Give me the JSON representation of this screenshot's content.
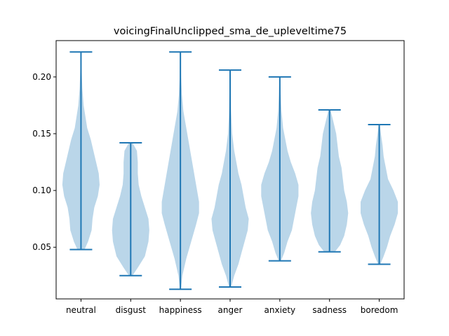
{
  "chart_data": {
    "type": "violin",
    "title": "voicingFinalUnclipped_sma_de_upleveltime75",
    "xlabel": "",
    "ylabel": "",
    "categories": [
      "neutral",
      "disgust",
      "happiness",
      "anger",
      "anxiety",
      "sadness",
      "boredom"
    ],
    "ylim": [
      0.0045,
      0.232
    ],
    "yticks": [
      0.05,
      0.1,
      0.15,
      0.2
    ],
    "ytick_labels": [
      "0.05",
      "0.10",
      "0.15",
      "0.20"
    ],
    "grid": false,
    "legend": "none",
    "colors": {
      "body": "#a9cce3",
      "line": "#1f77b4",
      "axis": "#000000"
    },
    "violins": [
      {
        "category": "neutral",
        "min": 0.048,
        "max": 0.222,
        "profile": [
          [
            0.048,
            0.004
          ],
          [
            0.055,
            0.008
          ],
          [
            0.065,
            0.012
          ],
          [
            0.075,
            0.013
          ],
          [
            0.085,
            0.015
          ],
          [
            0.095,
            0.019
          ],
          [
            0.105,
            0.021
          ],
          [
            0.115,
            0.02
          ],
          [
            0.125,
            0.017
          ],
          [
            0.135,
            0.014
          ],
          [
            0.145,
            0.011
          ],
          [
            0.155,
            0.007
          ],
          [
            0.165,
            0.005
          ],
          [
            0.175,
            0.003
          ],
          [
            0.19,
            0.0015
          ],
          [
            0.205,
            0.0008
          ],
          [
            0.222,
            0.0003
          ]
        ]
      },
      {
        "category": "disgust",
        "min": 0.025,
        "max": 0.142,
        "profile": [
          [
            0.025,
            0.002
          ],
          [
            0.032,
            0.008
          ],
          [
            0.042,
            0.016
          ],
          [
            0.055,
            0.02
          ],
          [
            0.065,
            0.021
          ],
          [
            0.075,
            0.02
          ],
          [
            0.085,
            0.016
          ],
          [
            0.095,
            0.012
          ],
          [
            0.105,
            0.009
          ],
          [
            0.115,
            0.008
          ],
          [
            0.125,
            0.008
          ],
          [
            0.135,
            0.007
          ],
          [
            0.142,
            0.002
          ]
        ]
      },
      {
        "category": "happiness",
        "min": 0.013,
        "max": 0.222,
        "profile": [
          [
            0.013,
            0.0005
          ],
          [
            0.025,
            0.002
          ],
          [
            0.04,
            0.006
          ],
          [
            0.055,
            0.011
          ],
          [
            0.07,
            0.016
          ],
          [
            0.08,
            0.019
          ],
          [
            0.09,
            0.019
          ],
          [
            0.1,
            0.017
          ],
          [
            0.11,
            0.015
          ],
          [
            0.12,
            0.013
          ],
          [
            0.13,
            0.011
          ],
          [
            0.14,
            0.009
          ],
          [
            0.15,
            0.007
          ],
          [
            0.16,
            0.005
          ],
          [
            0.17,
            0.003
          ],
          [
            0.185,
            0.0015
          ],
          [
            0.2,
            0.0007
          ],
          [
            0.222,
            0.0003
          ]
        ]
      },
      {
        "category": "anger",
        "min": 0.015,
        "max": 0.206,
        "profile": [
          [
            0.015,
            0.001
          ],
          [
            0.025,
            0.004
          ],
          [
            0.035,
            0.008
          ],
          [
            0.045,
            0.011
          ],
          [
            0.055,
            0.014
          ],
          [
            0.065,
            0.017
          ],
          [
            0.075,
            0.018
          ],
          [
            0.085,
            0.015
          ],
          [
            0.095,
            0.013
          ],
          [
            0.105,
            0.011
          ],
          [
            0.115,
            0.008
          ],
          [
            0.125,
            0.006
          ],
          [
            0.135,
            0.004
          ],
          [
            0.15,
            0.002
          ],
          [
            0.17,
            0.001
          ],
          [
            0.19,
            0.0006
          ],
          [
            0.206,
            0.0003
          ]
        ]
      },
      {
        "category": "anxiety",
        "min": 0.038,
        "max": 0.2,
        "profile": [
          [
            0.038,
            0.001
          ],
          [
            0.045,
            0.004
          ],
          [
            0.055,
            0.007
          ],
          [
            0.065,
            0.011
          ],
          [
            0.075,
            0.013
          ],
          [
            0.085,
            0.015
          ],
          [
            0.095,
            0.017
          ],
          [
            0.105,
            0.017
          ],
          [
            0.115,
            0.014
          ],
          [
            0.125,
            0.01
          ],
          [
            0.135,
            0.007
          ],
          [
            0.145,
            0.005
          ],
          [
            0.155,
            0.003
          ],
          [
            0.17,
            0.0015
          ],
          [
            0.185,
            0.0008
          ],
          [
            0.2,
            0.0003
          ]
        ]
      },
      {
        "category": "sadness",
        "min": 0.046,
        "max": 0.171,
        "profile": [
          [
            0.046,
            0.004
          ],
          [
            0.052,
            0.008
          ],
          [
            0.06,
            0.011
          ],
          [
            0.07,
            0.013
          ],
          [
            0.08,
            0.014
          ],
          [
            0.09,
            0.013
          ],
          [
            0.1,
            0.011
          ],
          [
            0.11,
            0.01
          ],
          [
            0.12,
            0.009
          ],
          [
            0.13,
            0.007
          ],
          [
            0.14,
            0.006
          ],
          [
            0.15,
            0.005
          ],
          [
            0.16,
            0.003
          ],
          [
            0.171,
            0.0007
          ]
        ]
      },
      {
        "category": "boredom",
        "min": 0.035,
        "max": 0.158,
        "profile": [
          [
            0.035,
            0.001
          ],
          [
            0.042,
            0.004
          ],
          [
            0.05,
            0.007
          ],
          [
            0.06,
            0.01
          ],
          [
            0.07,
            0.014
          ],
          [
            0.08,
            0.017
          ],
          [
            0.09,
            0.017
          ],
          [
            0.1,
            0.013
          ],
          [
            0.11,
            0.008
          ],
          [
            0.12,
            0.006
          ],
          [
            0.13,
            0.004
          ],
          [
            0.14,
            0.003
          ],
          [
            0.15,
            0.0015
          ],
          [
            0.158,
            0.0005
          ]
        ]
      }
    ]
  }
}
